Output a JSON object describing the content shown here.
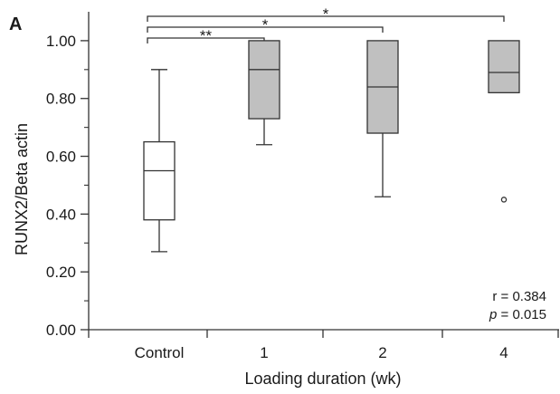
{
  "chart_data": {
    "type": "box",
    "panel_label": "A",
    "xlabel": "Loading duration (wk)",
    "ylabel": "RUNX2/Beta actin",
    "ylim": [
      0,
      1.1
    ],
    "y_ticks": [
      "0.00",
      "0.20",
      "0.40",
      "0.60",
      "0.80",
      "1.00"
    ],
    "categories": [
      "Control",
      "1",
      "2",
      "4"
    ],
    "boxes": [
      {
        "category": "Control",
        "whisker_low": 0.27,
        "q1": 0.38,
        "median": 0.55,
        "q3": 0.65,
        "whisker_high": 0.9,
        "fill": "#ffffff",
        "outliers": []
      },
      {
        "category": "1",
        "whisker_low": 0.64,
        "q1": 0.73,
        "median": 0.9,
        "q3": 1.0,
        "whisker_high": 1.0,
        "fill": "#c0c0c0",
        "outliers": []
      },
      {
        "category": "2",
        "whisker_low": 0.46,
        "q1": 0.68,
        "median": 0.84,
        "q3": 1.0,
        "whisker_high": 1.0,
        "fill": "#c0c0c0",
        "outliers": []
      },
      {
        "category": "4",
        "whisker_low": 0.82,
        "q1": 0.82,
        "median": 0.89,
        "q3": 1.0,
        "whisker_high": 1.0,
        "fill": "#c0c0c0",
        "outliers": [
          0.45
        ]
      }
    ],
    "significance": [
      {
        "from": "Control",
        "to": "1",
        "label": "**"
      },
      {
        "from": "Control",
        "to": "2",
        "label": "*"
      },
      {
        "from": "Control",
        "to": "4",
        "label": "*"
      }
    ],
    "stats": {
      "r_text": "r = 0.384",
      "p_symbol": "p",
      "p_rest": " = 0.015"
    }
  }
}
